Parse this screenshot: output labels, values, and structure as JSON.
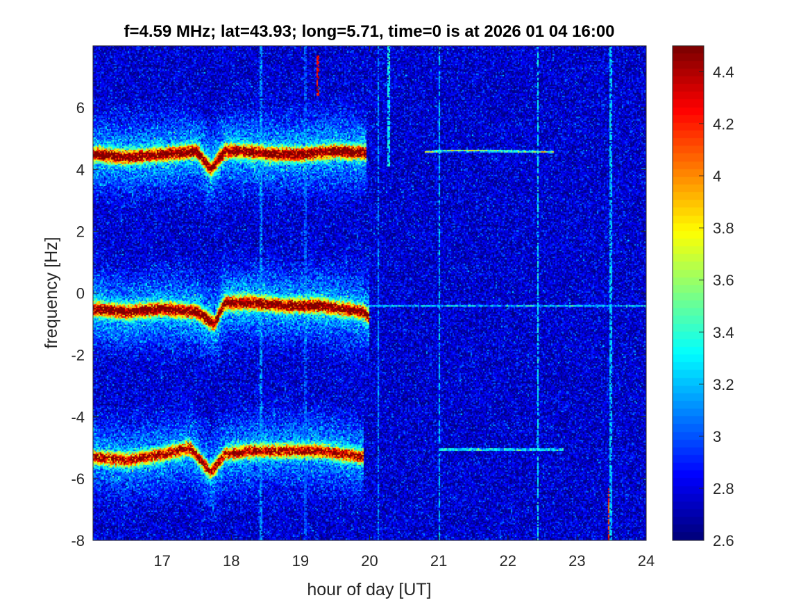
{
  "chart_data": [
    {
      "type": "heatmap",
      "title": "f=4.59 MHz;  lat=43.93; long=5.71, time=0 is at 2026 01 04 16:00",
      "xlabel": "hour of day [UT]",
      "ylabel": "frequency [Hz]",
      "xlim": [
        16,
        24
      ],
      "ylim": [
        -8,
        8
      ],
      "xticks": [
        17,
        18,
        19,
        20,
        21,
        22,
        23,
        24
      ],
      "xtick_labels": [
        "17",
        "18",
        "19",
        "20",
        "21",
        "22",
        "23",
        "24"
      ],
      "yticks": [
        -8,
        -6,
        -4,
        -2,
        0,
        2,
        4,
        6
      ],
      "ytick_labels": [
        "-8",
        "-6",
        "-4",
        "-2",
        "0",
        "2",
        "4",
        "6"
      ],
      "colormap": "jet",
      "grid": false,
      "background_level": 2.75,
      "traces": [
        {
          "center_points": [
            [
              16.0,
              4.5
            ],
            [
              16.5,
              4.4
            ],
            [
              17.0,
              4.5
            ],
            [
              17.5,
              4.6
            ],
            [
              17.7,
              4.0
            ],
            [
              17.9,
              4.6
            ],
            [
              18.2,
              4.6
            ],
            [
              18.6,
              4.5
            ],
            [
              19.0,
              4.5
            ],
            [
              19.5,
              4.6
            ],
            [
              19.95,
              4.55
            ]
          ],
          "peak_level": 4.5
        },
        {
          "center_points": [
            [
              20.8,
              4.58
            ],
            [
              21.2,
              4.62
            ],
            [
              22.0,
              4.6
            ],
            [
              22.65,
              4.58
            ]
          ],
          "peak_level": 3.8
        },
        {
          "center_points": [
            [
              16.0,
              -0.5
            ],
            [
              16.5,
              -0.6
            ],
            [
              17.0,
              -0.5
            ],
            [
              17.5,
              -0.6
            ],
            [
              17.75,
              -1.0
            ],
            [
              17.9,
              -0.3
            ],
            [
              18.3,
              -0.3
            ],
            [
              18.8,
              -0.4
            ],
            [
              19.3,
              -0.4
            ],
            [
              19.9,
              -0.6
            ],
            [
              20.0,
              -0.8
            ]
          ],
          "peak_level": 4.5
        },
        {
          "center_points": [
            [
              20.0,
              -0.4
            ],
            [
              21.5,
              -0.4
            ],
            [
              23.0,
              -0.4
            ],
            [
              24.0,
              -0.4
            ]
          ],
          "peak_level": 3.3
        },
        {
          "center_points": [
            [
              16.0,
              -5.3
            ],
            [
              16.5,
              -5.4
            ],
            [
              17.0,
              -5.2
            ],
            [
              17.4,
              -5.0
            ],
            [
              17.7,
              -5.8
            ],
            [
              17.9,
              -5.2
            ],
            [
              18.3,
              -5.1
            ],
            [
              18.8,
              -5.1
            ],
            [
              19.3,
              -5.1
            ],
            [
              19.9,
              -5.3
            ]
          ],
          "peak_level": 4.3
        },
        {
          "center_points": [
            [
              21.0,
              -5.05
            ],
            [
              21.5,
              -5.05
            ],
            [
              22.0,
              -5.05
            ],
            [
              22.8,
              -5.05
            ]
          ],
          "peak_level": 3.7
        }
      ],
      "vertical_streaks": [
        {
          "x": 18.42,
          "y_range": [
            -8,
            8
          ],
          "level": 3.1
        },
        {
          "x": 19.07,
          "y_range": [
            -8,
            8
          ],
          "level": 3.0
        },
        {
          "x": 19.25,
          "y_range": [
            6.4,
            7.7
          ],
          "level": 4.3
        },
        {
          "x": 20.12,
          "y_range": [
            -8,
            8
          ],
          "level": 3.1
        },
        {
          "x": 20.27,
          "y_range": [
            4.1,
            8
          ],
          "level": 3.3
        },
        {
          "x": 21.0,
          "y_range": [
            -8,
            8
          ],
          "level": 3.2
        },
        {
          "x": 22.43,
          "y_range": [
            -8,
            8
          ],
          "level": 3.3
        },
        {
          "x": 23.48,
          "y_range": [
            -8,
            8
          ],
          "level": 3.2
        },
        {
          "x": 23.45,
          "y_range": [
            -8,
            -6.3
          ],
          "level": 4.2
        }
      ]
    },
    {
      "type": "colorbar",
      "range": [
        2.6,
        4.5
      ],
      "ticks": [
        2.6,
        2.8,
        3,
        3.2,
        3.4,
        3.6,
        3.8,
        4,
        4.2,
        4.4
      ],
      "tick_labels": [
        "2.6",
        "2.8",
        "3",
        "3.2",
        "3.4",
        "3.6",
        "3.8",
        "4",
        "4.2",
        "4.4"
      ]
    }
  ]
}
